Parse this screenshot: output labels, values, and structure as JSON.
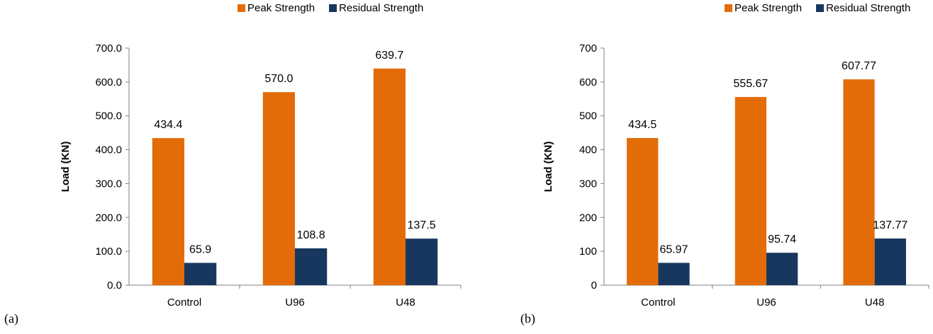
{
  "colors": {
    "peak": "#E36C09",
    "residual": "#17375E",
    "axis": "#808080"
  },
  "chart_data": [
    {
      "type": "bar",
      "panel_label": "(a)",
      "categories": [
        "Control",
        "U96",
        "U48"
      ],
      "series": [
        {
          "name": "Peak Strength",
          "values": [
            434.4,
            570.0,
            639.7
          ],
          "labels": [
            "434.4",
            "570.0",
            "639.7"
          ]
        },
        {
          "name": "Residual Strength",
          "values": [
            65.9,
            108.8,
            137.5
          ],
          "labels": [
            "65.9",
            "108.8",
            "137.5"
          ]
        }
      ],
      "ylabel": "Load (KN)",
      "ylim": [
        0,
        700
      ],
      "yticks": [
        "0.0",
        "100.0",
        "200.0",
        "300.0",
        "400.0",
        "500.0",
        "600.0",
        "700.0"
      ],
      "legend_position": "top",
      "grid": false
    },
    {
      "type": "bar",
      "panel_label": "(b)",
      "categories": [
        "Control",
        "U96",
        "U48"
      ],
      "series": [
        {
          "name": "Peak Strength",
          "values": [
            434.5,
            555.67,
            607.77
          ],
          "labels": [
            "434.5",
            "555.67",
            "607.77"
          ]
        },
        {
          "name": "Residual Strength",
          "values": [
            65.97,
            95.74,
            137.77
          ],
          "labels": [
            "65.97",
            "95.74",
            "137.77"
          ]
        }
      ],
      "ylabel": "Load (KN)",
      "ylim": [
        0,
        700
      ],
      "yticks": [
        "0",
        "100",
        "200",
        "300",
        "400",
        "500",
        "600",
        "700"
      ],
      "legend_position": "top",
      "grid": false
    }
  ]
}
